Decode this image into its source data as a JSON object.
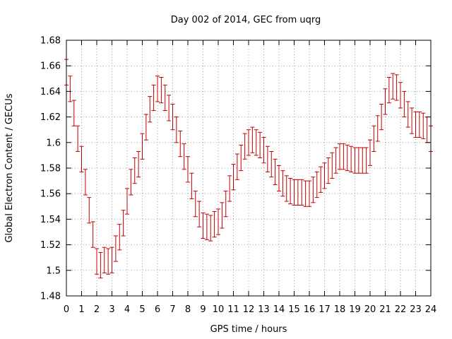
{
  "chart_data": {
    "type": "line",
    "title": "Day 002 of 2014, GEC from uqrg",
    "xlabel": "GPS time / hours",
    "ylabel": "Global Electron Content / GECUs",
    "xlim": [
      0,
      24
    ],
    "ylim": [
      1.48,
      1.68
    ],
    "x_ticks": [
      "0",
      "1",
      "2",
      "3",
      "4",
      "5",
      "6",
      "7",
      "8",
      "9",
      "10",
      "11",
      "12",
      "13",
      "14",
      "15",
      "16",
      "17",
      "18",
      "19",
      "20",
      "21",
      "22",
      "23",
      "24"
    ],
    "y_ticks": [
      "1.48",
      "1.5",
      "1.52",
      "1.54",
      "1.56",
      "1.58",
      "1.6",
      "1.62",
      "1.64",
      "1.66",
      "1.68"
    ],
    "grid": true,
    "color": "#c00000",
    "series": [
      {
        "error": 0.01,
        "x": [
          0,
          0.25,
          0.5,
          0.75,
          1,
          1.25,
          1.5,
          1.75,
          2,
          2.25,
          2.5,
          2.75,
          3,
          3.25,
          3.5,
          3.75,
          4,
          4.25,
          4.5,
          4.75,
          5,
          5.25,
          5.5,
          5.75,
          6,
          6.25,
          6.5,
          6.75,
          7,
          7.25,
          7.5,
          7.75,
          8,
          8.25,
          8.5,
          8.75,
          9,
          9.25,
          9.5,
          9.75,
          10,
          10.25,
          10.5,
          10.75,
          11,
          11.25,
          11.5,
          11.75,
          12,
          12.25,
          12.5,
          12.75,
          13,
          13.25,
          13.5,
          13.75,
          14,
          14.25,
          14.5,
          14.75,
          15,
          15.25,
          15.5,
          15.75,
          16,
          16.25,
          16.5,
          16.75,
          17,
          17.25,
          17.5,
          17.75,
          18,
          18.25,
          18.5,
          18.75,
          19,
          19.25,
          19.5,
          19.75,
          20,
          20.25,
          20.5,
          20.75,
          21,
          21.25,
          21.5,
          21.75,
          22,
          22.25,
          22.5,
          22.75,
          23,
          23.25,
          23.5,
          23.75,
          24
        ],
        "values": [
          1.655,
          1.642,
          1.623,
          1.603,
          1.587,
          1.569,
          1.547,
          1.528,
          1.507,
          1.504,
          1.508,
          1.507,
          1.508,
          1.517,
          1.526,
          1.537,
          1.554,
          1.569,
          1.578,
          1.583,
          1.597,
          1.612,
          1.626,
          1.635,
          1.642,
          1.641,
          1.635,
          1.627,
          1.62,
          1.61,
          1.599,
          1.589,
          1.579,
          1.566,
          1.552,
          1.544,
          1.535,
          1.534,
          1.533,
          1.536,
          1.538,
          1.543,
          1.552,
          1.564,
          1.573,
          1.581,
          1.588,
          1.597,
          1.6,
          1.602,
          1.6,
          1.598,
          1.594,
          1.587,
          1.583,
          1.577,
          1.572,
          1.568,
          1.564,
          1.562,
          1.561,
          1.561,
          1.561,
          1.56,
          1.56,
          1.563,
          1.567,
          1.571,
          1.574,
          1.578,
          1.582,
          1.586,
          1.589,
          1.589,
          1.588,
          1.587,
          1.586,
          1.586,
          1.586,
          1.586,
          1.592,
          1.603,
          1.611,
          1.62,
          1.632,
          1.641,
          1.644,
          1.643,
          1.637,
          1.63,
          1.622,
          1.617,
          1.614,
          1.614,
          1.613,
          1.61,
          1.603
        ]
      }
    ]
  }
}
